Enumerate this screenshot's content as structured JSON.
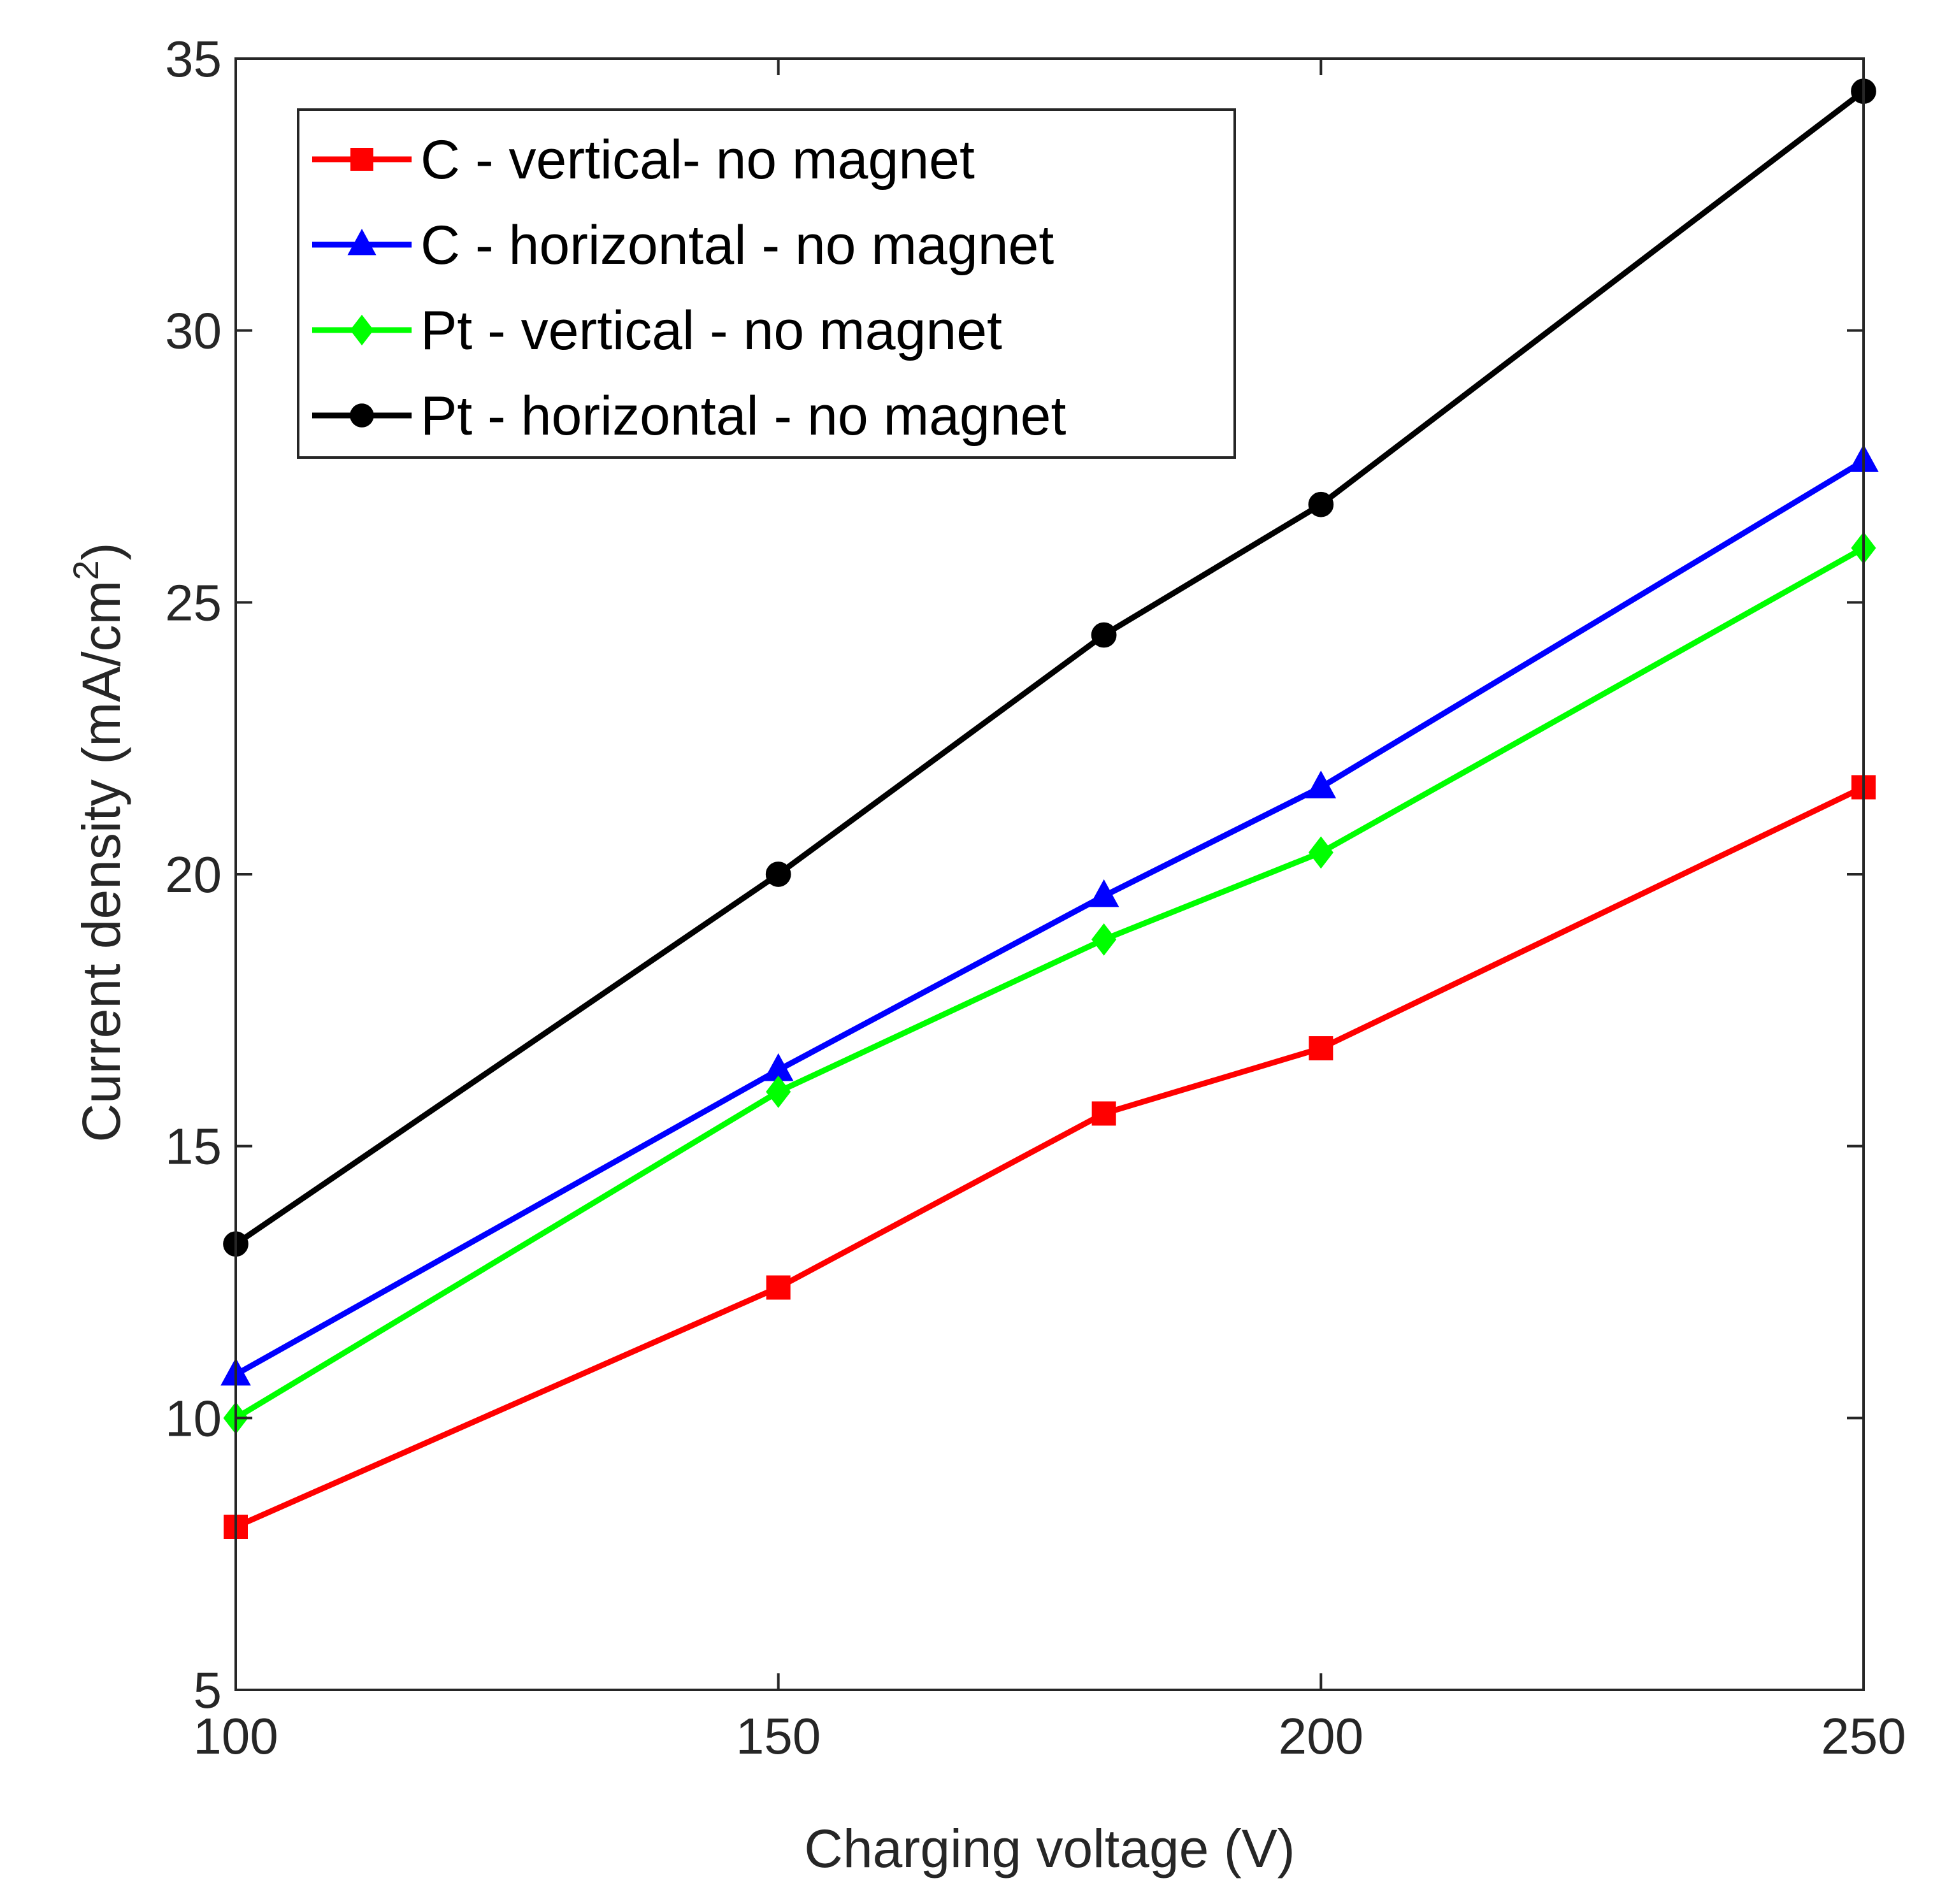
{
  "chart_data": {
    "type": "line",
    "title": "",
    "xlabel": "Charging voltage (V)",
    "ylabel": "Current density (mA/cm",
    "ylabel_superscript": "2",
    "ylabel_suffix": ")",
    "x": [
      100,
      150,
      180,
      200,
      250
    ],
    "xlim": [
      100,
      250
    ],
    "ylim": [
      5,
      35
    ],
    "xticks": [
      100,
      150,
      200,
      250
    ],
    "yticks": [
      5,
      10,
      15,
      20,
      25,
      30,
      35
    ],
    "grid": false,
    "legend_position": "top-left",
    "series": [
      {
        "name": "C - vertical- no magnet",
        "color": "#ff0000",
        "marker": "square",
        "values": [
          8.0,
          12.4,
          15.6,
          16.8,
          21.6
        ]
      },
      {
        "name": "C - horizontal - no magnet",
        "color": "#0000ff",
        "marker": "triangle",
        "values": [
          10.8,
          16.4,
          19.6,
          21.6,
          27.6
        ]
      },
      {
        "name": "Pt - vertical - no magnet",
        "color": "#00ff00",
        "marker": "diamond",
        "values": [
          10.0,
          16.0,
          18.8,
          20.4,
          26.0
        ]
      },
      {
        "name": "Pt - horizontal - no magnet",
        "color": "#000000",
        "marker": "circle",
        "values": [
          13.2,
          20.0,
          24.4,
          26.8,
          34.4
        ]
      }
    ]
  }
}
